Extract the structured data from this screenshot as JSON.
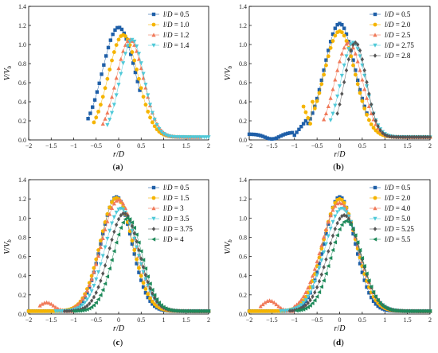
{
  "panels": [
    {
      "caption_letter": "a",
      "xlabel_sym": "r",
      "xlabel_sub": "D",
      "ylabel_sym": "V",
      "ylabel_sub": "V",
      "ylabel_sub2": "b"
    },
    {
      "caption_letter": "b",
      "xlabel_sym": "r",
      "xlabel_sub": "D",
      "ylabel_sym": "V",
      "ylabel_sub": "V",
      "ylabel_sub2": "b"
    },
    {
      "caption_letter": "c",
      "xlabel_sym": "r",
      "xlabel_sub": "D",
      "ylabel_sym": "V",
      "ylabel_sub": "V",
      "ylabel_sub2": "b"
    },
    {
      "caption_letter": "d",
      "xlabel_sym": "r",
      "xlabel_sub": "D",
      "ylabel_sym": "V",
      "ylabel_sub": "V",
      "ylabel_sub2": "b"
    }
  ],
  "chart_data": [
    {
      "type": "scatter",
      "xlim": [
        -2,
        2
      ],
      "ylim": [
        0,
        1.4
      ],
      "xticks": [
        "−2",
        "−1.5",
        "−1",
        "−0.5",
        "0",
        "0.5",
        "1",
        "1.5",
        "2"
      ],
      "yticks": [
        "0.0",
        "0.2",
        "0.4",
        "0.6",
        "0.8",
        "1.0",
        "1.2",
        "1.4"
      ],
      "legend_position": "top-right",
      "series": [
        {
          "name": "0.5",
          "color": "#1f5fa8",
          "marker": "square",
          "peak_x": 0.0,
          "peak_y": 1.18,
          "sigma": 0.36,
          "base": 0.03,
          "x_start": -0.68,
          "x_end": 0.5
        },
        {
          "name": "1.0",
          "color": "#f5b400",
          "marker": "circle",
          "peak_x": 0.1,
          "peak_y": 1.1,
          "sigma": 0.33,
          "base": 0.03,
          "x_start": -0.55,
          "x_end": 1.6
        },
        {
          "name": "1.2",
          "color": "#f07a5a",
          "marker": "triangle-up",
          "peak_x": 0.25,
          "peak_y": 1.05,
          "sigma": 0.3,
          "base": 0.03,
          "x_start": -0.35,
          "x_end": 1.8
        },
        {
          "name": "1.4",
          "color": "#4fc9d8",
          "marker": "triangle-down",
          "peak_x": 0.3,
          "peak_y": 1.05,
          "sigma": 0.27,
          "base": 0.03,
          "x_start": -0.25,
          "x_end": 2.0
        }
      ]
    },
    {
      "type": "scatter",
      "xlim": [
        -2,
        2
      ],
      "ylim": [
        0,
        1.4
      ],
      "xticks": [
        "−2",
        "−1.5",
        "−1",
        "−0.5",
        "0",
        "0.5",
        "1",
        "1.5",
        "2"
      ],
      "yticks": [
        "0.0",
        "0.2",
        "0.4",
        "0.6",
        "0.8",
        "1.0",
        "1.2",
        "1.4"
      ],
      "legend_position": "top-right",
      "series": [
        {
          "name": "0.5",
          "color": "#1f5fa8",
          "marker": "square",
          "peak_x": 0.0,
          "peak_y": 1.22,
          "sigma": 0.34,
          "base": 0.03,
          "x_start": -2.0,
          "x_end": 0.6,
          "low_tail": "b-dip"
        },
        {
          "name": "2.0",
          "color": "#f5b400",
          "marker": "circle",
          "peak_x": 0.0,
          "peak_y": 1.14,
          "sigma": 0.34,
          "base": 0.03,
          "x_start": -0.8,
          "x_end": 2.0,
          "low_tail": "b-bump"
        },
        {
          "name": "2.5",
          "color": "#f07a5a",
          "marker": "triangle-up",
          "peak_x": 0.2,
          "peak_y": 1.02,
          "sigma": 0.3,
          "base": 0.03,
          "x_start": -0.35,
          "x_end": 2.0
        },
        {
          "name": "2.75",
          "color": "#4fc9d8",
          "marker": "triangle-down",
          "peak_x": 0.3,
          "peak_y": 1.02,
          "sigma": 0.27,
          "base": 0.03,
          "x_start": -0.2,
          "x_end": 2.0
        },
        {
          "name": "2.8",
          "color": "#555555",
          "marker": "diamond",
          "peak_x": 0.35,
          "peak_y": 1.02,
          "sigma": 0.24,
          "base": 0.03,
          "x_start": -0.05,
          "x_end": 2.0
        }
      ]
    },
    {
      "type": "scatter",
      "xlim": [
        -2,
        2
      ],
      "ylim": [
        0,
        1.4
      ],
      "xticks": [
        "−2",
        "−1.5",
        "−1",
        "−0.5",
        "0",
        "0.5",
        "1",
        "1.5",
        "2"
      ],
      "yticks": [
        "0.0",
        "0.2",
        "0.4",
        "0.6",
        "0.8",
        "1.0",
        "1.2",
        "1.4"
      ],
      "legend_position": "top-right",
      "series": [
        {
          "name": "0.5",
          "color": "#1f5fa8",
          "marker": "square",
          "peak_x": -0.05,
          "peak_y": 1.22,
          "sigma": 0.34,
          "base": 0.03,
          "x_start": -2.0,
          "x_end": 2.0
        },
        {
          "name": "1.5",
          "color": "#f5b400",
          "marker": "circle",
          "peak_x": -0.05,
          "peak_y": 1.21,
          "sigma": 0.36,
          "base": 0.03,
          "x_start": -2.0,
          "x_end": 2.0
        },
        {
          "name": "3",
          "color": "#f07a5a",
          "marker": "triangle-up",
          "peak_x": 0.0,
          "peak_y": 1.19,
          "sigma": 0.38,
          "base": 0.03,
          "x_start": -1.75,
          "x_end": 2.0,
          "low_tail": "c-bump"
        },
        {
          "name": "3.5",
          "color": "#4fc9d8",
          "marker": "triangle-down",
          "peak_x": 0.05,
          "peak_y": 1.1,
          "sigma": 0.36,
          "base": 0.03,
          "x_start": -1.4,
          "x_end": 2.0
        },
        {
          "name": "3.75",
          "color": "#555555",
          "marker": "diamond",
          "peak_x": 0.12,
          "peak_y": 1.05,
          "sigma": 0.34,
          "base": 0.03,
          "x_start": -1.2,
          "x_end": 2.0
        },
        {
          "name": "4",
          "color": "#1e8a5a",
          "marker": "triangle-left",
          "peak_x": 0.2,
          "peak_y": 1.0,
          "sigma": 0.32,
          "base": 0.03,
          "x_start": -1.0,
          "x_end": 2.0
        }
      ]
    },
    {
      "type": "scatter",
      "xlim": [
        -2,
        2
      ],
      "ylim": [
        0,
        1.4
      ],
      "xticks": [
        "−2",
        "−1.5",
        "−1",
        "−0.5",
        "0",
        "0.5",
        "1",
        "1.5",
        "2"
      ],
      "yticks": [
        "0.0",
        "0.2",
        "0.4",
        "0.6",
        "0.8",
        "1.0",
        "1.2",
        "1.4"
      ],
      "legend_position": "top-right",
      "series": [
        {
          "name": "0.5",
          "color": "#1f5fa8",
          "marker": "square",
          "peak_x": 0.0,
          "peak_y": 1.22,
          "sigma": 0.34,
          "base": 0.03,
          "x_start": -2.0,
          "x_end": 2.0
        },
        {
          "name": "2.0",
          "color": "#f5b400",
          "marker": "circle",
          "peak_x": 0.0,
          "peak_y": 1.2,
          "sigma": 0.37,
          "base": 0.03,
          "x_start": -2.0,
          "x_end": 2.0
        },
        {
          "name": "4.0",
          "color": "#f07a5a",
          "marker": "triangle-up",
          "peak_x": 0.0,
          "peak_y": 1.16,
          "sigma": 0.4,
          "base": 0.03,
          "x_start": -1.75,
          "x_end": 2.0,
          "low_tail": "d-bump"
        },
        {
          "name": "5.0",
          "color": "#4fc9d8",
          "marker": "triangle-down",
          "peak_x": 0.05,
          "peak_y": 1.1,
          "sigma": 0.38,
          "base": 0.03,
          "x_start": -1.3,
          "x_end": 2.0
        },
        {
          "name": "5.25",
          "color": "#555555",
          "marker": "diamond",
          "peak_x": 0.1,
          "peak_y": 1.03,
          "sigma": 0.36,
          "base": 0.03,
          "x_start": -1.1,
          "x_end": 2.0
        },
        {
          "name": "5.5",
          "color": "#1e8a5a",
          "marker": "triangle-left",
          "peak_x": 0.15,
          "peak_y": 0.97,
          "sigma": 0.34,
          "base": 0.03,
          "x_start": -0.95,
          "x_end": 2.0
        }
      ]
    }
  ]
}
